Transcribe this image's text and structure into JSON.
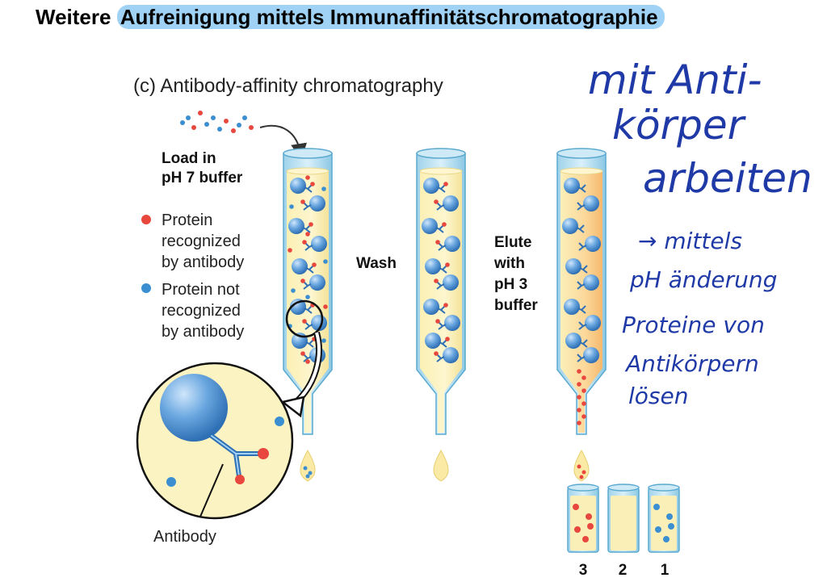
{
  "slide": {
    "title_prefix": "Weitere ",
    "title_highlight": "Aufreinigung mittels Immunaffinitätschromatographie"
  },
  "figure": {
    "caption": "(c) Antibody-affinity chromatography",
    "load_line1": "Load in",
    "load_line2": "pH 7 buffer",
    "legend": [
      {
        "lines": [
          "Protein",
          "recognized",
          "by antibody"
        ],
        "color": "#e8473e"
      },
      {
        "lines": [
          "Protein not",
          "recognized",
          "by antibody"
        ],
        "color": "#3b8fd1"
      }
    ],
    "wash": "Wash",
    "elute_lines": [
      "Elute",
      "with",
      "pH 3",
      "buffer"
    ],
    "antibody": "Antibody",
    "tube_numbers": [
      "3",
      "2",
      "1"
    ]
  },
  "handwriting": {
    "note1_lines": [
      "mit Anti-",
      "körper",
      "arbeiten"
    ],
    "note2_lines": [
      "→ mittels",
      "pH änderung",
      "Proteine von",
      "Antikörpern",
      "lösen"
    ]
  },
  "colors": {
    "highlight": "#9fd2f5",
    "protein_recognized": "#e8473e",
    "protein_not_recognized": "#3b8fd1",
    "ink": "#1f3aa6",
    "column_fill": "#fbf0b4"
  }
}
